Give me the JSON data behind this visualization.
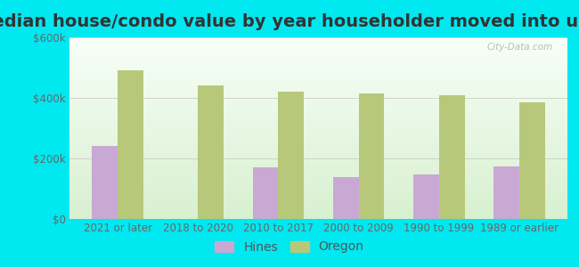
{
  "title": "Median house/condo value by year householder moved into unit",
  "categories": [
    "2021 or later",
    "2018 to 2020",
    "2010 to 2017",
    "2000 to 2009",
    "1990 to 1999",
    "1989 or earlier"
  ],
  "hines_values": [
    240000,
    0,
    170000,
    138000,
    148000,
    175000
  ],
  "oregon_values": [
    490000,
    440000,
    420000,
    415000,
    408000,
    385000
  ],
  "hines_color": "#c9a8d4",
  "oregon_color": "#b8c87a",
  "background_outer": "#00e8f0",
  "ylim": [
    0,
    600000
  ],
  "yticks": [
    0,
    200000,
    400000,
    600000
  ],
  "ytick_labels": [
    "$0",
    "$200k",
    "$400k",
    "$600k"
  ],
  "legend_hines": "Hines",
  "legend_oregon": "Oregon",
  "watermark": "City-Data.com",
  "title_fontsize": 14,
  "tick_fontsize": 8.5,
  "legend_fontsize": 10,
  "bar_width": 0.32
}
